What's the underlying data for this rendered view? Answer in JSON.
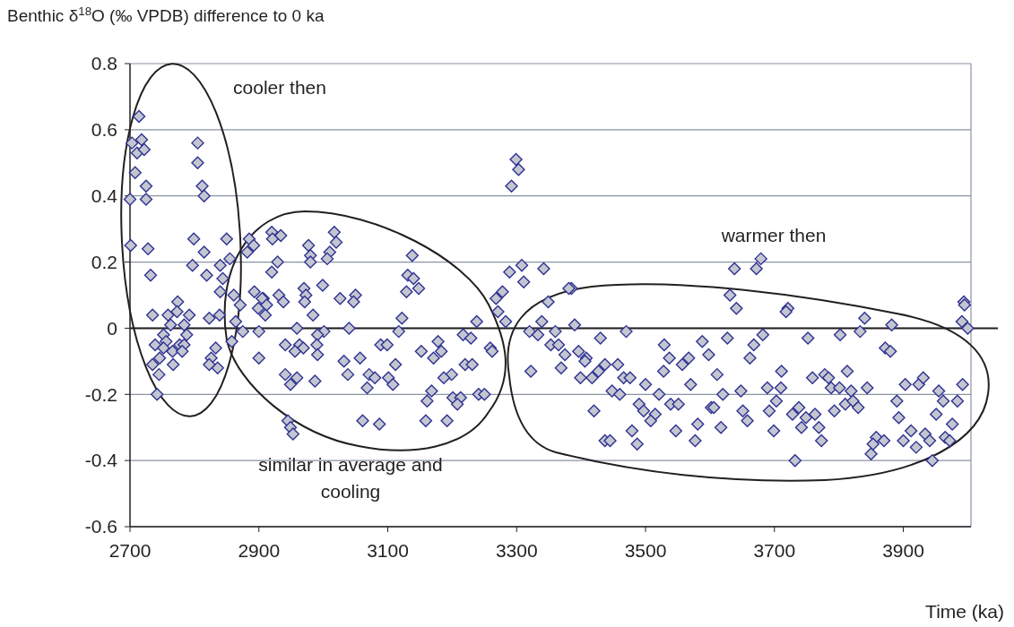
{
  "chart_data": {
    "type": "scatter",
    "ylabel": "Benthic δ$^{18}$O (‰ VPDB) difference to 0 ka",
    "xlabel": "Time (ka)",
    "xlim": [
      2700,
      4005
    ],
    "xticks": [
      2700,
      2900,
      3100,
      3300,
      3500,
      3700,
      3900
    ],
    "ylim": [
      -0.6,
      0.8
    ],
    "yticks": [
      -0.6,
      -0.4,
      -0.2,
      0,
      0.2,
      0.4,
      0.6,
      0.8
    ],
    "grid": "y",
    "marker": "diamond",
    "ref_lines": [
      {
        "axis": "y",
        "value": 0,
        "color": "#231f20"
      }
    ],
    "annotations": [
      "cooler then",
      "similar in average and cooling",
      "warmer then"
    ],
    "series": [
      {
        "color": "#2e3192",
        "x": [
          2714,
          2703,
          2718,
          2711,
          2722,
          2708,
          2725,
          2700,
          2725,
          2805,
          2805,
          2812,
          2815,
          2701,
          2728,
          2799,
          2815,
          2797,
          2732,
          2819,
          2850,
          2840,
          2855,
          2844,
          2840,
          2774,
          2885,
          2892,
          2882,
          2920,
          2934,
          2921,
          2929,
          2920,
          2893,
          2907,
          2977,
          2980,
          2980,
          3010,
          3006,
          3017,
          3020,
          2999,
          2970,
          2973,
          3026,
          3050,
          3138,
          3131,
          3140,
          3129,
          3148,
          2735,
          2759,
          2773,
          2792,
          2763,
          2784,
          2752,
          2788,
          2739,
          2756,
          2777,
          2784,
          2752,
          2735,
          2746,
          2766,
          2781,
          2767,
          2745,
          2742,
          2823,
          2839,
          2858,
          2833,
          2826,
          2836,
          2823,
          2861,
          2871,
          2864,
          2875,
          2905,
          2912,
          2899,
          2910,
          2900,
          2931,
          2938,
          2971,
          2984,
          2959,
          3001,
          2991,
          2941,
          2963,
          2969,
          2956,
          2990,
          2991,
          2900,
          2941,
          2959,
          2949,
          2987,
          3040,
          3047,
          3089,
          3099,
          3032,
          3057,
          3038,
          3071,
          3080,
          3101,
          3108,
          3068,
          3112,
          3122,
          3117,
          2945,
          2949,
          2953,
          3061,
          3087,
          3278,
          3268,
          3271,
          3283,
          3238,
          3152,
          3178,
          3183,
          3171,
          3217,
          3229,
          3259,
          3262,
          3220,
          3231,
          3199,
          3187,
          3168,
          3161,
          3201,
          3213,
          3208,
          3241,
          3250,
          3159,
          3192,
          3385,
          3349,
          3339,
          3390,
          3320,
          3333,
          3360,
          3322,
          3353,
          3365,
          3375,
          3396,
          3408,
          3406,
          3430,
          3470,
          3369,
          3399,
          3417,
          3427,
          3437,
          3457,
          3466,
          3476,
          3448,
          3460,
          3420,
          3500,
          3521,
          3490,
          3497,
          3515,
          3508,
          3437,
          3445,
          3479,
          3487,
          3529,
          3537,
          3528,
          3557,
          3567,
          3570,
          3539,
          3551,
          3581,
          3547,
          3577,
          3588,
          3598,
          3602,
          3299,
          3303,
          3292,
          3308,
          3289,
          3342,
          3311,
          3381,
          3679,
          3672,
          3638,
          3631,
          3994,
          3641,
          3721,
          3718,
          3840,
          3833,
          3882,
          3995,
          3991,
          4000,
          3627,
          3682,
          3752,
          3802,
          3668,
          3662,
          3872,
          3880,
          3611,
          3711,
          3759,
          3778,
          3784,
          3813,
          3620,
          3648,
          3689,
          3710,
          3703,
          3788,
          3801,
          3819,
          3844,
          3903,
          3924,
          3931,
          3992,
          3606,
          3651,
          3658,
          3692,
          3728,
          3738,
          3749,
          3763,
          3742,
          3769,
          3793,
          3810,
          3822,
          3830,
          3617,
          3699,
          3773,
          3732,
          3890,
          3893,
          3912,
          3900,
          3920,
          3934,
          3941,
          3955,
          3962,
          3951,
          3976,
          3965,
          3972,
          3984,
          3858,
          3853,
          3870,
          3850,
          3945
        ],
        "values": [
          0.64,
          0.56,
          0.57,
          0.53,
          0.54,
          0.47,
          0.43,
          0.39,
          0.39,
          0.56,
          0.5,
          0.43,
          0.4,
          0.25,
          0.24,
          0.27,
          0.23,
          0.19,
          0.16,
          0.16,
          0.27,
          0.19,
          0.21,
          0.15,
          0.11,
          0.08,
          0.27,
          0.25,
          0.23,
          0.29,
          0.28,
          0.27,
          0.2,
          0.17,
          0.11,
          0.09,
          0.25,
          0.22,
          0.2,
          0.23,
          0.21,
          0.29,
          0.26,
          0.13,
          0.12,
          0.1,
          0.09,
          0.1,
          0.22,
          0.16,
          0.15,
          0.11,
          0.12,
          0.04,
          0.04,
          0.05,
          0.04,
          0.01,
          0.01,
          -0.02,
          -0.02,
          -0.05,
          -0.04,
          -0.05,
          -0.05,
          -0.06,
          -0.11,
          -0.09,
          -0.07,
          -0.07,
          -0.11,
          -0.14,
          -0.2,
          0.03,
          0.04,
          -0.04,
          -0.06,
          -0.09,
          -0.12,
          -0.11,
          0.1,
          0.07,
          0.02,
          -0.01,
          0.09,
          0.07,
          0.06,
          0.04,
          -0.01,
          0.1,
          0.08,
          0.08,
          0.04,
          0,
          -0.01,
          -0.02,
          -0.05,
          -0.05,
          -0.06,
          -0.07,
          -0.05,
          -0.08,
          -0.09,
          -0.14,
          -0.15,
          -0.17,
          -0.16,
          0,
          0.08,
          -0.05,
          -0.05,
          -0.1,
          -0.09,
          -0.14,
          -0.14,
          -0.15,
          -0.15,
          -0.17,
          -0.18,
          -0.11,
          0.03,
          -0.01,
          -0.28,
          -0.3,
          -0.32,
          -0.28,
          -0.29,
          0.11,
          0.09,
          0.05,
          0.02,
          0.02,
          -0.07,
          -0.04,
          -0.07,
          -0.09,
          -0.02,
          -0.03,
          -0.06,
          -0.07,
          -0.11,
          -0.11,
          -0.14,
          -0.15,
          -0.19,
          -0.22,
          -0.21,
          -0.21,
          -0.23,
          -0.2,
          -0.2,
          -0.28,
          -0.28,
          0.12,
          0.08,
          0.02,
          0.01,
          -0.01,
          -0.02,
          -0.01,
          -0.13,
          -0.05,
          -0.05,
          -0.08,
          -0.07,
          -0.09,
          -0.1,
          -0.03,
          -0.01,
          -0.12,
          -0.15,
          -0.15,
          -0.13,
          -0.11,
          -0.11,
          -0.15,
          -0.15,
          -0.19,
          -0.2,
          -0.25,
          -0.17,
          -0.2,
          -0.23,
          -0.25,
          -0.26,
          -0.28,
          -0.34,
          -0.34,
          -0.31,
          -0.35,
          -0.05,
          -0.09,
          -0.13,
          -0.11,
          -0.09,
          -0.17,
          -0.23,
          -0.23,
          -0.29,
          -0.31,
          -0.34,
          -0.04,
          -0.08,
          -0.24,
          0.51,
          0.48,
          0.43,
          0.19,
          0.17,
          0.18,
          0.14,
          0.12,
          0.21,
          0.18,
          0.18,
          0.1,
          0.08,
          0.06,
          0.06,
          0.05,
          0.03,
          -0.01,
          0.01,
          0.07,
          0.02,
          0,
          -0.03,
          -0.02,
          -0.03,
          -0.02,
          -0.05,
          -0.09,
          -0.06,
          -0.07,
          -0.14,
          -0.13,
          -0.15,
          -0.14,
          -0.15,
          -0.13,
          -0.2,
          -0.19,
          -0.18,
          -0.18,
          -0.22,
          -0.18,
          -0.18,
          -0.19,
          -0.18,
          -0.17,
          -0.17,
          -0.15,
          -0.17,
          -0.24,
          -0.25,
          -0.28,
          -0.25,
          -0.26,
          -0.24,
          -0.27,
          -0.26,
          -0.3,
          -0.3,
          -0.25,
          -0.23,
          -0.22,
          -0.24,
          -0.3,
          -0.31,
          -0.34,
          -0.4,
          -0.22,
          -0.27,
          -0.31,
          -0.34,
          -0.36,
          -0.32,
          -0.34,
          -0.19,
          -0.22,
          -0.26,
          -0.29,
          -0.33,
          -0.34,
          -0.22,
          -0.33,
          -0.35,
          -0.34,
          -0.38,
          -0.4
        ]
      }
    ]
  }
}
